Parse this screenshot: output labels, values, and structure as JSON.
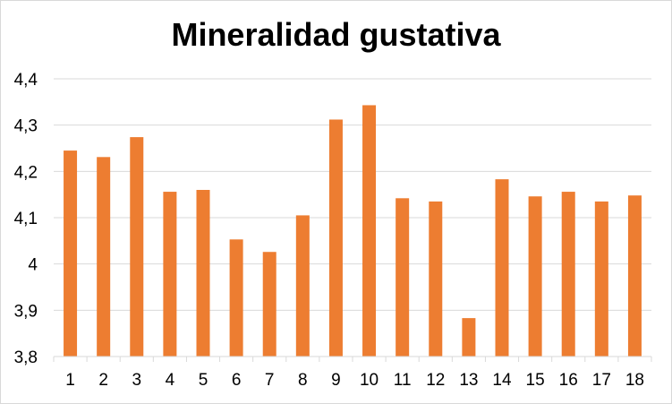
{
  "chart_data": {
    "type": "bar",
    "title": "Mineralidad gustativa",
    "xlabel": "",
    "ylabel": "",
    "categories": [
      "1",
      "2",
      "3",
      "4",
      "5",
      "6",
      "7",
      "8",
      "9",
      "10",
      "11",
      "12",
      "13",
      "14",
      "15",
      "16",
      "17",
      "18"
    ],
    "values": [
      4.245,
      4.231,
      4.274,
      4.156,
      4.16,
      4.053,
      4.026,
      4.105,
      4.312,
      4.343,
      4.142,
      4.135,
      3.883,
      4.183,
      4.146,
      4.156,
      4.135,
      4.148
    ],
    "ylim": [
      3.8,
      4.4
    ],
    "yticks": [
      "3,8",
      "3,9",
      "4",
      "4,1",
      "4,2",
      "4,3",
      "4,4"
    ],
    "grid": true,
    "legend": "none",
    "colors": {
      "bar": "#ed7d31",
      "grid": "#d9d9d9",
      "axis": "#d9d9d9"
    }
  }
}
